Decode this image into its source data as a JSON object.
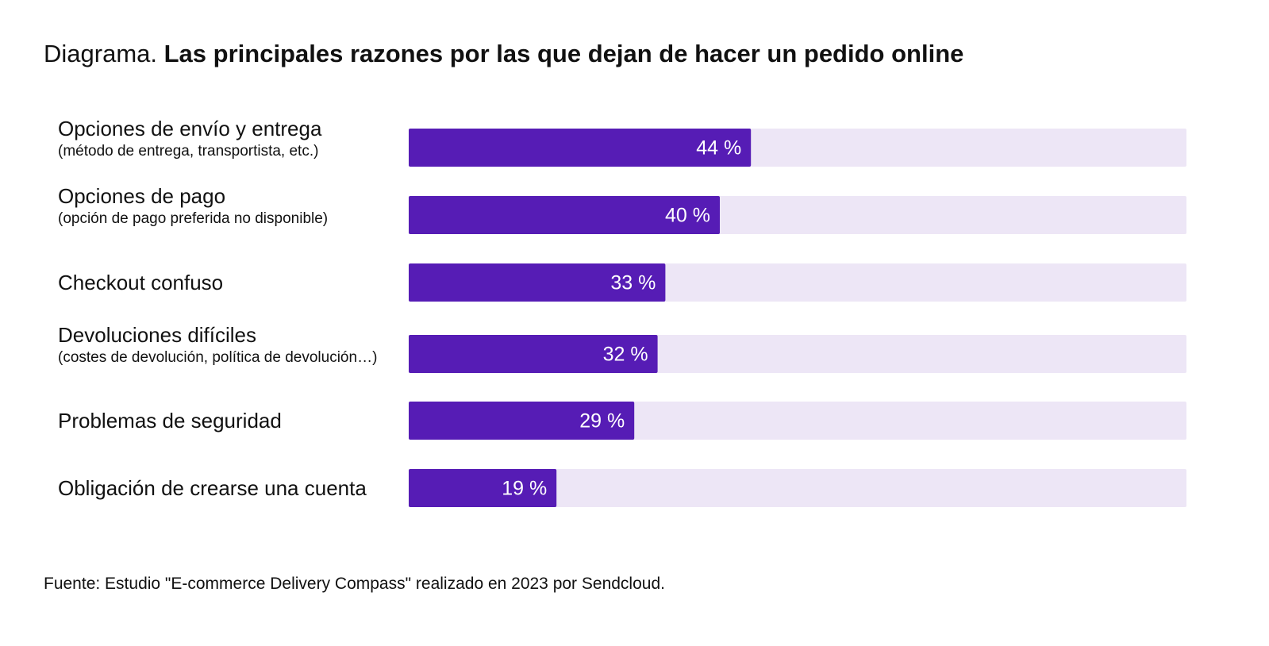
{
  "chart_data": {
    "type": "bar",
    "orientation": "horizontal",
    "title_prefix": "Diagrama.",
    "title": "Las principales razones por las que dejan de hacer un pedido online",
    "categories": [
      "Opciones de envío y entrega",
      "Opciones de pago",
      "Checkout confuso",
      "Devoluciones difíciles",
      "Problemas de seguridad",
      "Obligación de crearse una cuenta"
    ],
    "category_notes": [
      "(método de entrega, transportista, etc.)",
      "(opción de pago preferida no disponible)",
      null,
      "(costes de devolución, política de devolución…)",
      null,
      null
    ],
    "values": [
      44,
      40,
      33,
      32,
      29,
      19
    ],
    "value_labels": [
      "44 %",
      "40 %",
      "33 %",
      "32 %",
      "29 %",
      "19 %"
    ],
    "color": "#561cb5",
    "track_color": "#ede6f6",
    "xlim": [
      0,
      100
    ],
    "source": "Fuente: Estudio \"E-commerce Delivery Compass\" realizado en 2023 por Sendcloud."
  }
}
